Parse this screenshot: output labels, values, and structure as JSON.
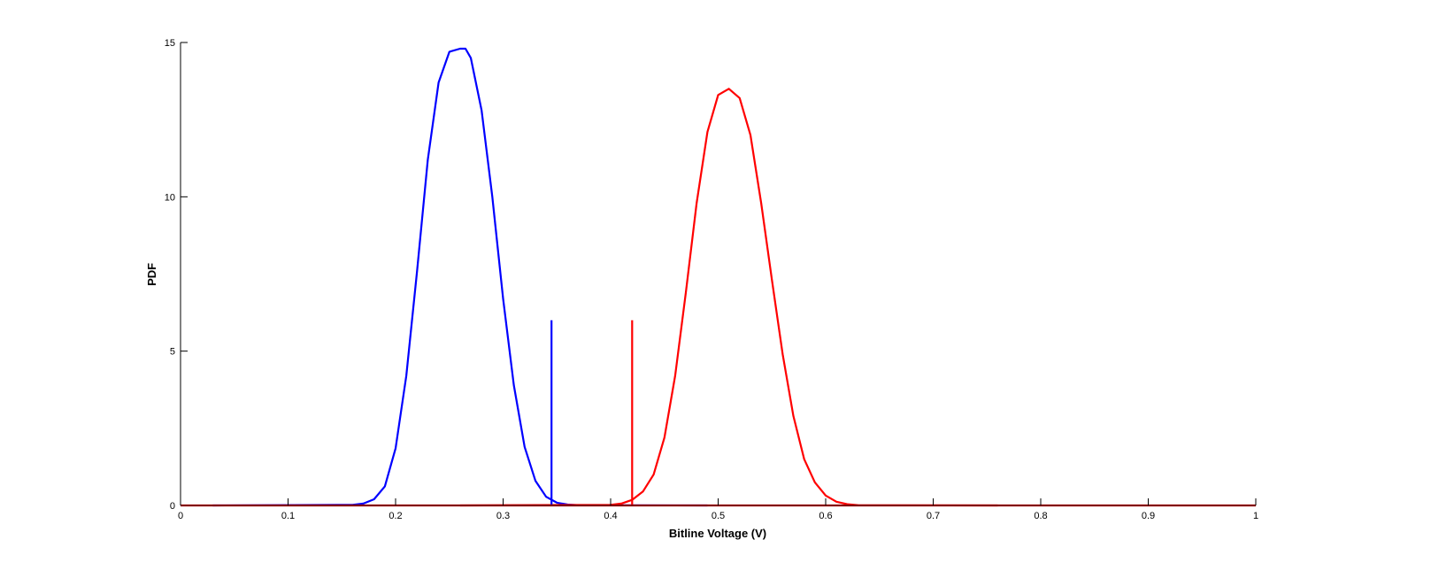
{
  "chart_data": {
    "type": "line",
    "title": "",
    "xlabel": "Bitline Voltage (V)",
    "ylabel": "PDF",
    "xlim": [
      0,
      1
    ],
    "ylim": [
      0,
      15
    ],
    "xticks": [
      0,
      0.1,
      0.2,
      0.3,
      0.4,
      0.5,
      0.6,
      0.7,
      0.8,
      0.9,
      1
    ],
    "xtick_labels": [
      "0",
      "0.1",
      "0.2",
      "0.3",
      "0.4",
      "0.5",
      "0.6",
      "0.7",
      "0.8",
      "0.9",
      "1"
    ],
    "yticks": [
      0,
      5,
      10,
      15
    ],
    "ytick_labels": [
      "0",
      "5",
      "10",
      "15"
    ],
    "grid": false,
    "legend": "none",
    "series": [
      {
        "color": "#0000ff",
        "x": [
          0.03,
          0.16,
          0.17,
          0.18,
          0.19,
          0.2,
          0.21,
          0.22,
          0.23,
          0.24,
          0.25,
          0.26,
          0.265,
          0.27,
          0.28,
          0.29,
          0.3,
          0.31,
          0.32,
          0.33,
          0.34,
          0.35,
          0.36,
          0.37,
          0.49
        ],
        "y": [
          0,
          0.02,
          0.06,
          0.2,
          0.62,
          1.85,
          4.2,
          7.6,
          11.2,
          13.7,
          14.7,
          14.8,
          14.8,
          14.5,
          12.8,
          10.0,
          6.7,
          3.9,
          1.9,
          0.8,
          0.28,
          0.09,
          0.03,
          0.01,
          0
        ]
      },
      {
        "color": "#ff0000",
        "x": [
          0.26,
          0.4,
          0.41,
          0.42,
          0.43,
          0.44,
          0.45,
          0.46,
          0.47,
          0.48,
          0.49,
          0.5,
          0.51,
          0.52,
          0.53,
          0.54,
          0.55,
          0.56,
          0.57,
          0.58,
          0.59,
          0.6,
          0.61,
          0.62,
          0.63,
          0.76
        ],
        "y": [
          0,
          0.02,
          0.06,
          0.18,
          0.45,
          1.0,
          2.2,
          4.2,
          6.9,
          9.8,
          12.1,
          13.3,
          13.5,
          13.2,
          12.0,
          9.8,
          7.3,
          4.9,
          2.9,
          1.5,
          0.75,
          0.32,
          0.12,
          0.04,
          0.01,
          0
        ]
      },
      {
        "color": "#0000ff",
        "x": [
          0.345,
          0.345
        ],
        "y": [
          0,
          6
        ]
      },
      {
        "color": "#ff0000",
        "x": [
          0.42,
          0.42
        ],
        "y": [
          0,
          6
        ]
      },
      {
        "color": "#ff0000",
        "x": [
          0,
          1
        ],
        "y": [
          0,
          0
        ]
      }
    ]
  }
}
